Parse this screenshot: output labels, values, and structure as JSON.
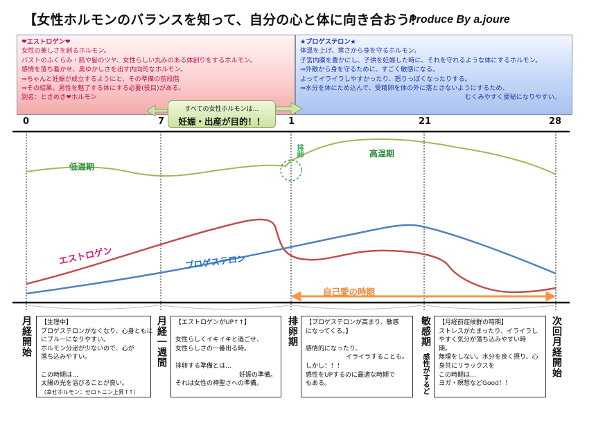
{
  "title": "【女性ホルモンのバランスを知って、自分の心と体に向き合おう！",
  "produce": "Produce  By   a.joure",
  "estrogen_box": {
    "heading": "❤エストロゲン❤",
    "lines": [
      "女性の美しさを創るホルモン。",
      "バストのふくらみ・肌や髪のツヤ、女性らしい丸みのある体創りをするホルモン。",
      "感情を落ち着かせ、奥ゆかしさを出す内向的なホルモン。",
      "⇒ちゃんと妊娠が成立するようにと、その準備の前段階",
      "⇒その結果、男性を魅了する体にする必要(役目)がある。",
      "別名：ときめき❤ホルモン"
    ]
  },
  "progesterone_box": {
    "heading": "★プロゲステロン★",
    "lines": [
      "体温を上げ、寒さから身を守るホルモン。",
      "子宮内膜を豊かにし、子供を妊娠した時に、それを守れるような体にするホルモン。",
      "⇒外敵から身を守るために、すごく敏感になる。",
      "よってイライラしやすかったり、怒りっぽくなったりする。",
      "⇒水分を体にため込んで、受精卵を体の外に落とさないようにするため、"
    ],
    "last_line": "むくみやすく便秘になりやすい。"
  },
  "center_note": {
    "line1": "すべての女性ホルモンは…",
    "line2": "妊娠・出産が目的！！"
  },
  "ticks": [
    "0",
    "7",
    "1",
    "21",
    "28"
  ],
  "curves": {
    "low_temp": "低温期",
    "high_temp": "高温期",
    "ovulation": "排卵",
    "estrogen": "エストロゲン",
    "progesterone": "プロゲステロン",
    "self_love": "自己愛の時期"
  },
  "colors": {
    "temperature": "#9bbb59",
    "estrogen": "#c0504d",
    "progesterone": "#4f81bd",
    "self_love": "#f79646",
    "estrogen_label": "#e0186e",
    "progesterone_label": "#1f6fc6"
  },
  "stages": [
    {
      "title": "月経開始"
    },
    {
      "title": "月経一週間"
    },
    {
      "title": "排卵期"
    },
    {
      "title": "敏感期",
      "sub": "感性がするど"
    },
    {
      "title": "次回月経開始"
    }
  ],
  "notes": [
    {
      "heading": "【生理中】",
      "lines": [
        "プロゲステロンがなくなり、心身ともに",
        "にブルーになりやすい。",
        "ホルモン分泌が少ないので、心が",
        "落ち込みやすい。",
        "",
        "この時期は…",
        "太陽の光を浴びることが良い。",
        "（幸せホルモン：セロトニン上昇↑↑）"
      ]
    },
    {
      "heading": "【エストロゲンがUP↑↑】",
      "lines": [
        "",
        "女性らしくイキイキと過ごせ、",
        "女性らしさの一番出る時。",
        "",
        "排卵する準備とは…"
      ],
      "right_line": "妊娠の準備。",
      "last_line": "それは女性の神聖さへの準備。"
    },
    {
      "heading": "【プロゲステロンが高まり、敏感",
      "lines": [
        "になってくる。】",
        "",
        "感情的になったり、"
      ],
      "right_line": "イライラすることも。",
      "tail": [
        "しかし！！！",
        "感性をUPするのに最適な時期で",
        "もある。"
      ]
    },
    {
      "heading": "【月経前症候群の時期】",
      "lines": [
        "ストレスがたまったり、イライラし",
        "やすく気分が落ち込みやすい時",
        "期。",
        "無理をしない。水分を良く摂り、心",
        "身共にリラックスを",
        "この時期は…",
        "ヨガ・瞑想などGood！！"
      ]
    }
  ]
}
